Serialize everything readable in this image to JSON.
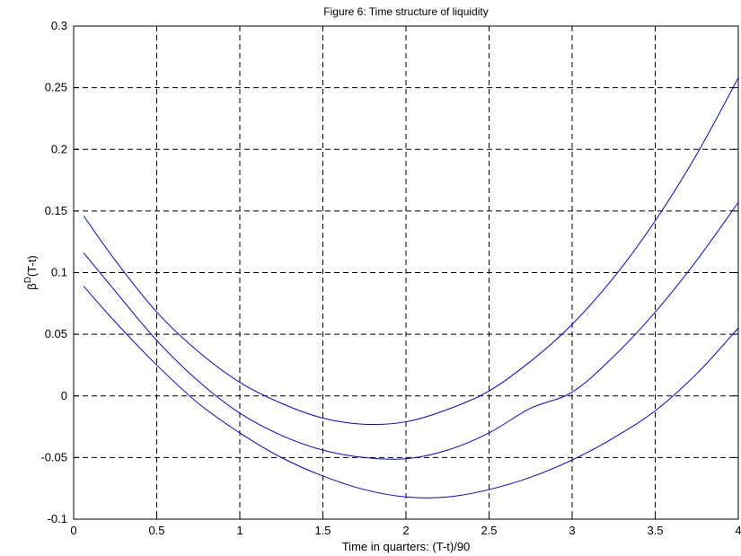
{
  "chart_data": {
    "type": "line",
    "title": "Figure 6: Time structure of liquidity",
    "xlabel": "Time in quarters: (T-t)/90",
    "ylabel": {
      "base": "β",
      "superscript": "D",
      "suffix": "(T-t)"
    },
    "xlim": [
      0,
      4
    ],
    "ylim": [
      -0.1,
      0.3
    ],
    "xticks": [
      0,
      0.5,
      1,
      1.5,
      2,
      2.5,
      3,
      3.5,
      4
    ],
    "xtick_labels": [
      "0",
      "0.5",
      "1",
      "1.5",
      "2",
      "2.5",
      "3",
      "3.5",
      "4"
    ],
    "yticks": [
      -0.1,
      -0.05,
      0,
      0.05,
      0.1,
      0.15,
      0.2,
      0.25,
      0.3
    ],
    "ytick_labels": [
      "-0.1",
      "-0.05",
      "0",
      "0.05",
      "0.1",
      "0.15",
      "0.2",
      "0.25",
      "0.3"
    ],
    "grid": true,
    "color": "#0000ff",
    "series": [
      {
        "x": [
          0.06,
          0.25,
          0.5,
          0.75,
          1.0,
          1.25,
          1.5,
          1.75,
          2.0,
          2.25,
          2.5,
          2.75,
          3.0,
          3.25,
          3.5,
          3.75,
          4.0
        ],
        "y": [
          0.146,
          0.11,
          0.068,
          0.036,
          0.011,
          -0.006,
          -0.018,
          -0.023,
          -0.021,
          -0.011,
          0.004,
          0.028,
          0.058,
          0.096,
          0.142,
          0.196,
          0.258
        ]
      },
      {
        "x": [
          0.06,
          0.25,
          0.5,
          0.75,
          1.0,
          1.25,
          1.5,
          1.75,
          2.0,
          2.25,
          2.5,
          2.75,
          3.0,
          3.25,
          3.5,
          3.75,
          4.0
        ],
        "y": [
          0.116,
          0.085,
          0.045,
          0.012,
          -0.014,
          -0.032,
          -0.044,
          -0.05,
          -0.051,
          -0.044,
          -0.03,
          -0.01,
          0.003,
          0.032,
          0.068,
          0.11,
          0.157
        ]
      },
      {
        "x": [
          0.06,
          0.25,
          0.5,
          0.75,
          1.0,
          1.25,
          1.5,
          1.75,
          2.0,
          2.25,
          2.5,
          2.75,
          3.0,
          3.25,
          3.5,
          3.75,
          4.0
        ],
        "y": [
          0.089,
          0.06,
          0.025,
          -0.006,
          -0.03,
          -0.05,
          -0.065,
          -0.076,
          -0.082,
          -0.082,
          -0.076,
          -0.066,
          -0.052,
          -0.034,
          -0.012,
          0.018,
          0.055
        ]
      }
    ]
  }
}
